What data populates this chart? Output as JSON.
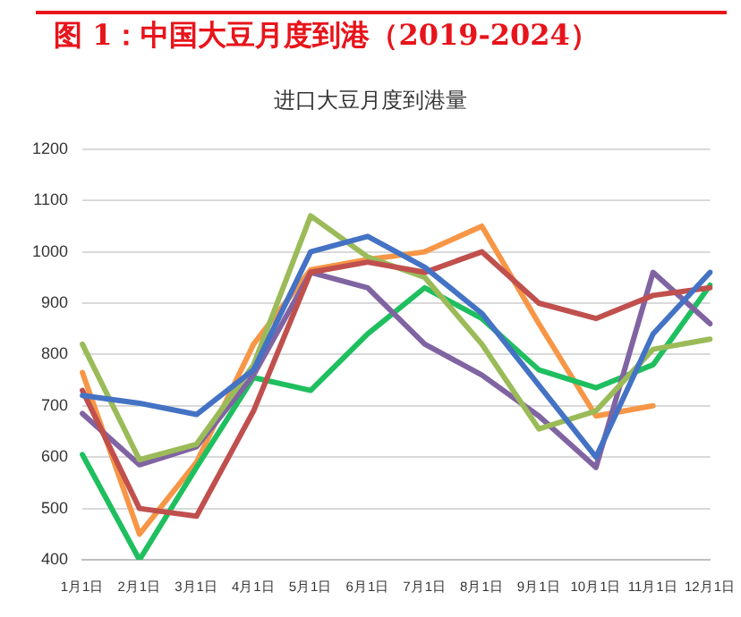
{
  "chart_data": {
    "type": "line",
    "title": "图 1：中国大豆月度到港（2019-2024）",
    "subtitle": "进口大豆月度到港量",
    "categories": [
      "1月1日",
      "2月1日",
      "3月1日",
      "4月1日",
      "5月1日",
      "6月1日",
      "7月1日",
      "8月1日",
      "9月1日",
      "10月1日",
      "11月1日",
      "12月1日"
    ],
    "series": [
      {
        "color": "#4472c4",
        "values": [
          720,
          705,
          683,
          770,
          1000,
          1030,
          970,
          880,
          740,
          600,
          840,
          960
        ]
      },
      {
        "color": "#c0504d",
        "values": [
          730,
          500,
          485,
          690,
          960,
          980,
          960,
          1000,
          900,
          870,
          915,
          930
        ]
      },
      {
        "color": "#9bbb59",
        "values": [
          820,
          595,
          625,
          780,
          1070,
          990,
          950,
          820,
          655,
          690,
          810,
          830
        ]
      },
      {
        "color": "#8064a2",
        "values": [
          685,
          585,
          620,
          760,
          960,
          930,
          820,
          760,
          680,
          580,
          960,
          860
        ]
      },
      {
        "color": "#1fbf5f",
        "values": [
          605,
          400,
          580,
          755,
          730,
          840,
          930,
          870,
          770,
          735,
          780,
          935
        ]
      },
      {
        "color": "#f79646",
        "values": [
          765,
          450,
          590,
          820,
          965,
          985,
          1000,
          1050,
          860,
          680,
          700,
          null
        ]
      }
    ],
    "ylim": [
      400,
      1200
    ],
    "yticks": [
      400,
      500,
      600,
      700,
      800,
      900,
      1000,
      1100,
      1200
    ],
    "grid": "y",
    "legend": false,
    "marker": "none",
    "line_style": "solid"
  }
}
